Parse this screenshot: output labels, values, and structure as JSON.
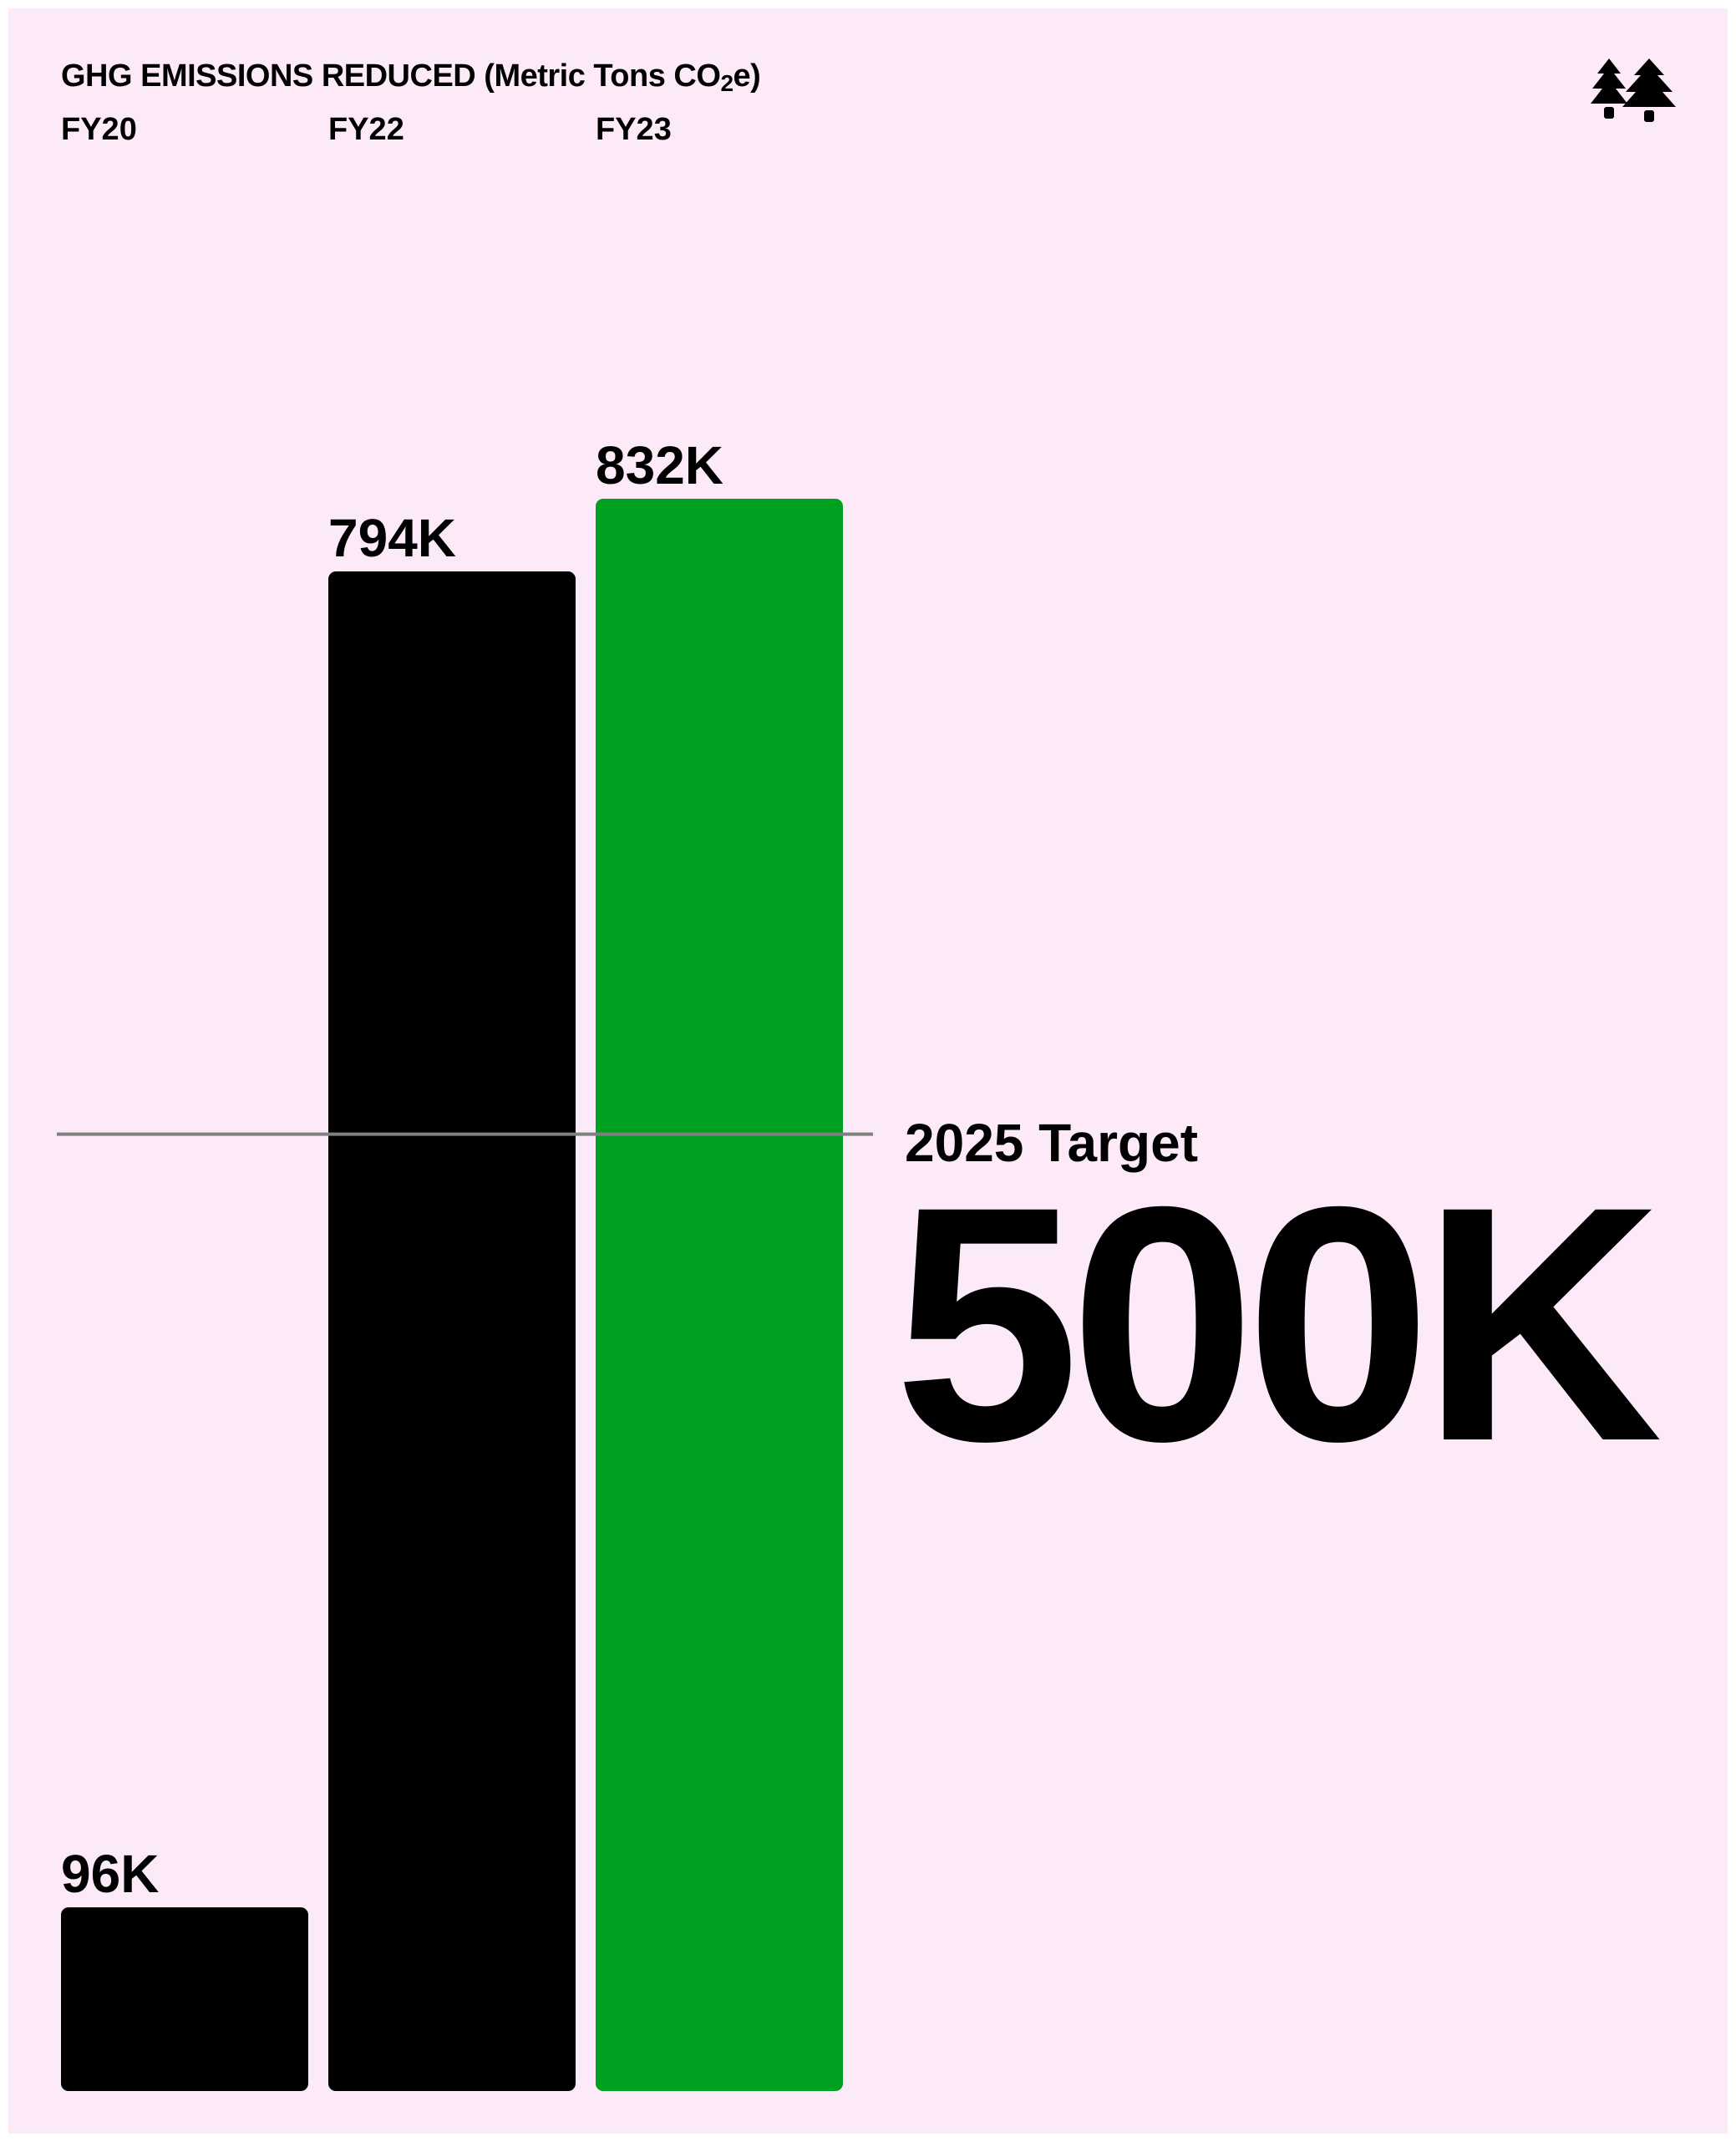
{
  "chart_data": {
    "type": "bar",
    "title": "GHG EMISSIONS REDUCED (Metric Tons CO",
    "title_subscript": "2",
    "title_suffix": "e)",
    "categories": [
      "FY20",
      "FY22",
      "FY23"
    ],
    "values": [
      96,
      794,
      832
    ],
    "value_labels": [
      "96K",
      "794K",
      "832K"
    ],
    "bar_colors": [
      "#000000",
      "#000000",
      "#00a020"
    ],
    "ylim": [
      0,
      832
    ],
    "grid": false,
    "target": {
      "label": "2025 Target",
      "value": 500,
      "value_label": "500K",
      "line_color": "#808080"
    }
  },
  "icons": {
    "logo": "twin-trees-logo"
  }
}
